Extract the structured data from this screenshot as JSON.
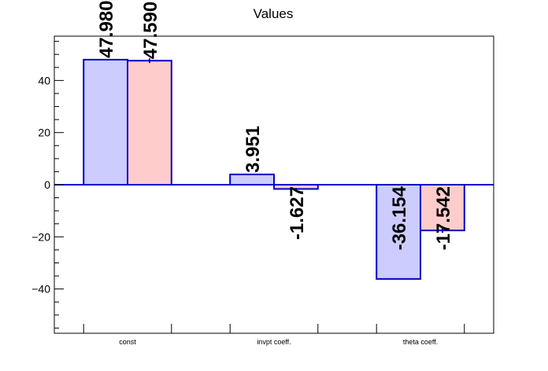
{
  "chart_data": {
    "type": "bar",
    "title": "Values",
    "xlabel": "",
    "ylabel": "",
    "categories": [
      "const",
      "invpt coeff.",
      "theta coeff."
    ],
    "ylim": [
      -57,
      57
    ],
    "yticks": [
      -40,
      -20,
      0,
      20,
      40
    ],
    "yticklabels": [
      "−40",
      "−20",
      "0",
      "20",
      "40"
    ],
    "grid": false,
    "legend": "none",
    "series": [
      {
        "values": [
          47.98,
          3.951,
          -36.154
        ],
        "labels": [
          "47.980",
          "3.951",
          "-36.154"
        ],
        "fill": "#ccccff",
        "stroke": "#0000cc"
      },
      {
        "values": [
          47.59,
          -1.627,
          -17.542
        ],
        "labels": [
          "47.590",
          "-1.627",
          "-17.542"
        ],
        "errors": [
          0.9,
          0.4,
          0.9
        ],
        "fill": "#ffcccc",
        "stroke": "#0000cc"
      }
    ]
  }
}
